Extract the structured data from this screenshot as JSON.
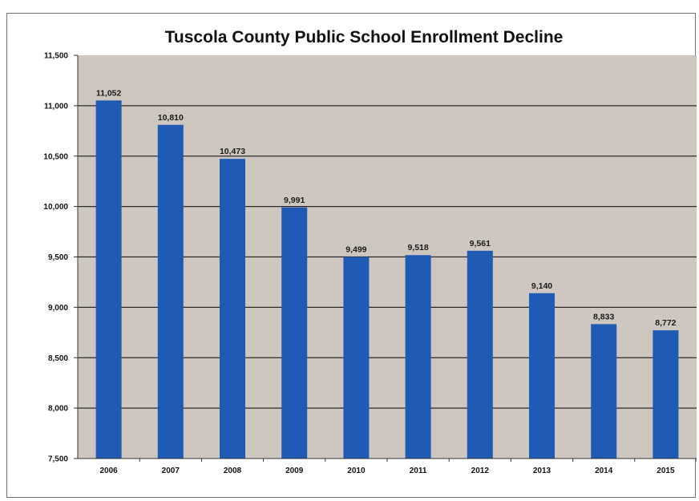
{
  "chart_data": {
    "type": "bar",
    "title": "Tuscola County Public School Enrollment Decline",
    "xlabel": "",
    "ylabel": "",
    "categories": [
      "2006",
      "2007",
      "2008",
      "2009",
      "2010",
      "2011",
      "2012",
      "2013",
      "2014",
      "2015"
    ],
    "values": [
      11052,
      10810,
      10473,
      9991,
      9499,
      9518,
      9561,
      9140,
      8833,
      8772
    ],
    "data_labels": [
      "11,052",
      "10,810",
      "10,473",
      "9,991",
      "9,499",
      "9,518",
      "9,561",
      "9,140",
      "8,833",
      "8,772"
    ],
    "ylim": [
      7500,
      11500
    ],
    "y_ticks": [
      7500,
      8000,
      8500,
      9000,
      9500,
      10000,
      10500,
      11000,
      11500
    ],
    "y_tick_labels": [
      "7,500",
      "8,000",
      "8,500",
      "9,000",
      "9,500",
      "10,000",
      "10,500",
      "11,000",
      "11,500"
    ],
    "grid": true,
    "legend": "none",
    "colors": {
      "bar": "#1f5bb5",
      "plot_background": "#cdc7c0",
      "gridline": "#2a2a2a"
    }
  }
}
